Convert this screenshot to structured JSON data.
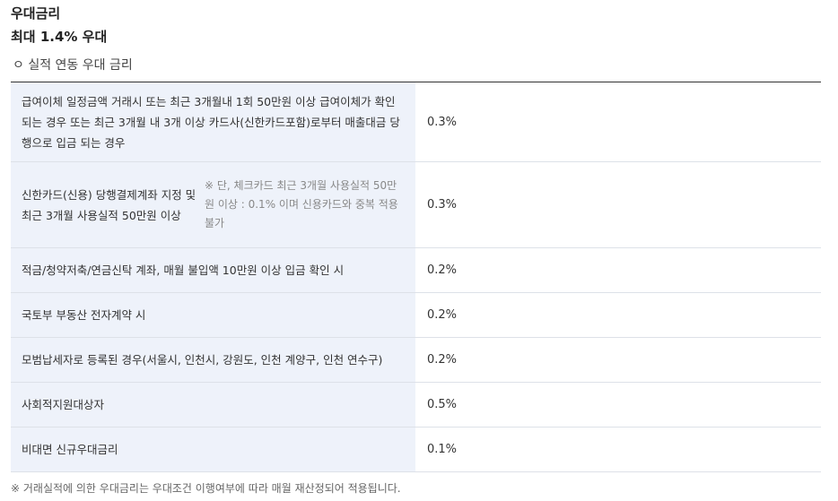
{
  "header": {
    "title": "우대금리",
    "subtitle": "최대 1.4% 우대"
  },
  "section": {
    "title": "ㅇ 실적 연동 우대 금리"
  },
  "table": {
    "rows": [
      {
        "condition": "급여이체 일정금액 거래시 또는 최근 3개월내 1회 50만원 이상 급여이체가 확인되는 경우 또는 최근 3개월 내 3개 이상 카드사(신한카드포함)로부터 매출대금 당행으로 입금 되는 경우",
        "rate": "0.3%"
      },
      {
        "condition": "신한카드(신용) 당행결제계좌 지정 및 최근 3개월 사용실적 50만원 이상",
        "note": "※ 단, 체크카드 최근 3개월 사용실적 50만원 이상 : 0.1% 이며 신용카드와 중복 적용 불가",
        "rate": "0.3%"
      },
      {
        "condition": "적금/청약저축/연금신탁 계좌, 매월 불입액 10만원 이상 입금 확인 시",
        "rate": "0.2%"
      },
      {
        "condition": "국토부 부동산 전자계약 시",
        "rate": "0.2%"
      },
      {
        "condition": "모범납세자로 등록된 경우(서울시, 인천시, 강원도, 인천 계양구, 인천 연수구)",
        "rate": "0.2%"
      },
      {
        "condition": "사회적지원대상자",
        "rate": "0.5%"
      },
      {
        "condition": "비대면 신규우대금리",
        "rate": "0.1%"
      }
    ]
  },
  "footnote": "※ 거래실적에 의한 우대금리는 우대조건 이행여부에 따라 매월 재산정되어 적용됩니다."
}
